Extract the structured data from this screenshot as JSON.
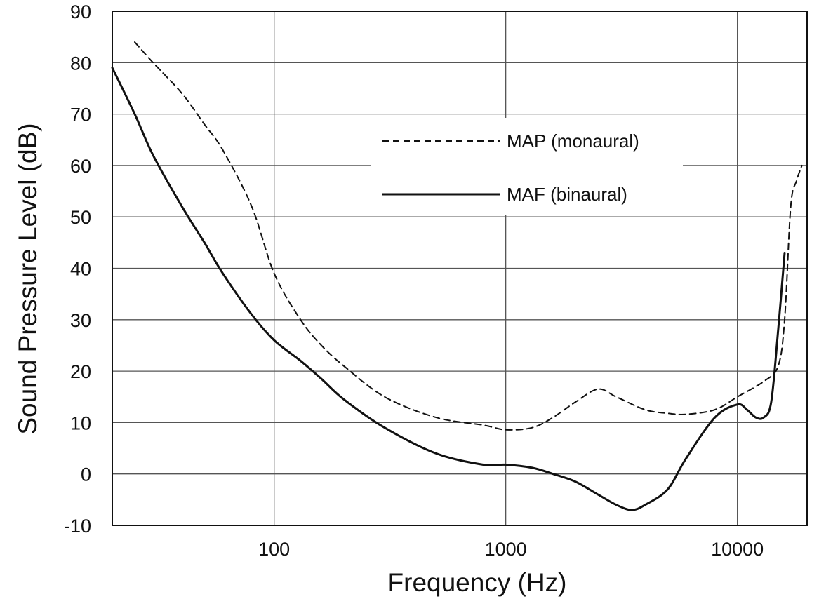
{
  "chart_data": {
    "type": "line",
    "title": "",
    "xlabel": "Frequency (Hz)",
    "ylabel": "Sound Pressure Level (dB)",
    "x_scale": "log",
    "xlim": [
      20,
      20000
    ],
    "ylim": [
      -10,
      90
    ],
    "x_ticks": [
      100,
      1000,
      10000
    ],
    "x_tick_labels": [
      "100",
      "1000",
      "10000"
    ],
    "y_ticks": [
      -10,
      0,
      10,
      20,
      30,
      40,
      50,
      60,
      70,
      80,
      90
    ],
    "y_tick_labels": [
      "-10",
      "0",
      "10",
      "20",
      "30",
      "40",
      "50",
      "60",
      "70",
      "80",
      "90"
    ],
    "grid": true,
    "legend_position": "center-right",
    "series": [
      {
        "name": "MAP (monaural)",
        "style": "dashed",
        "color": "#111111",
        "x": [
          25,
          30,
          40,
          50,
          60,
          80,
          100,
          130,
          160,
          200,
          300,
          500,
          800,
          1000,
          1300,
          1600,
          2000,
          2500,
          3000,
          4000,
          5000,
          6000,
          8000,
          10000,
          13000,
          15000,
          16000,
          17000,
          18000,
          19000
        ],
        "y": [
          84,
          80,
          74,
          68,
          63,
          52,
          39,
          30,
          25,
          21,
          15,
          11,
          9.5,
          8.6,
          9,
          11,
          14,
          16.5,
          15,
          12.5,
          11.8,
          11.6,
          12.5,
          15,
          18,
          21,
          30,
          52,
          57,
          60
        ]
      },
      {
        "name": "MAF (binaural)",
        "style": "solid",
        "color": "#111111",
        "x": [
          20,
          25,
          30,
          40,
          50,
          60,
          80,
          100,
          130,
          160,
          200,
          300,
          500,
          800,
          1000,
          1300,
          1600,
          2000,
          2500,
          3000,
          3500,
          4000,
          5000,
          6000,
          8000,
          10000,
          11000,
          12000,
          13000,
          14000,
          15000,
          16000
        ],
        "y": [
          79,
          70,
          62,
          52,
          45,
          39,
          31,
          26,
          22,
          18.5,
          14.5,
          9,
          4,
          1.8,
          1.8,
          1.2,
          0,
          -1.5,
          -4,
          -6,
          -7,
          -6,
          -3,
          3,
          11,
          13.5,
          12.5,
          11,
          11,
          14,
          28,
          43
        ]
      }
    ]
  }
}
